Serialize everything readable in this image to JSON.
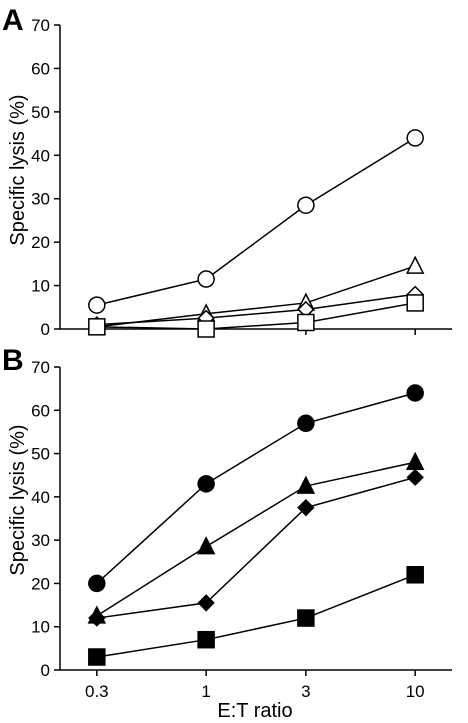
{
  "chart_data": [
    {
      "panel": "A",
      "type": "line",
      "xlabel": "",
      "ylabel": "Specific lysis (%)",
      "x": [
        0.3,
        1,
        3,
        10
      ],
      "x_scale": "log",
      "xlim": [
        0.2,
        15
      ],
      "ylim": [
        0,
        70
      ],
      "yticks": [
        0,
        10,
        20,
        30,
        40,
        50,
        60,
        70
      ],
      "grid": false,
      "series": [
        {
          "marker": "circle-open",
          "values": [
            5.5,
            11.5,
            28.5,
            44
          ]
        },
        {
          "marker": "triangle-open",
          "values": [
            0.5,
            3.5,
            6,
            14.5
          ]
        },
        {
          "marker": "diamond-open",
          "values": [
            1,
            2.5,
            4.5,
            8
          ]
        },
        {
          "marker": "square-open",
          "values": [
            0.5,
            0,
            1.5,
            6
          ]
        }
      ]
    },
    {
      "panel": "B",
      "type": "line",
      "xlabel": "E:T ratio",
      "ylabel": "Specific lysis (%)",
      "x": [
        0.3,
        1,
        3,
        10
      ],
      "xtick_labels": [
        "0.3",
        "1",
        "3",
        "10"
      ],
      "x_scale": "log",
      "xlim": [
        0.2,
        15
      ],
      "ylim": [
        0,
        70
      ],
      "yticks": [
        0,
        10,
        20,
        30,
        40,
        50,
        60,
        70
      ],
      "grid": false,
      "series": [
        {
          "marker": "circle-filled",
          "values": [
            20,
            43,
            57,
            64
          ]
        },
        {
          "marker": "triangle-filled",
          "values": [
            12.5,
            28.5,
            42.5,
            48
          ]
        },
        {
          "marker": "diamond-filled",
          "values": [
            12,
            15.5,
            37.5,
            44.5
          ]
        },
        {
          "marker": "square-filled",
          "values": [
            3,
            7,
            12,
            22
          ]
        }
      ]
    }
  ]
}
